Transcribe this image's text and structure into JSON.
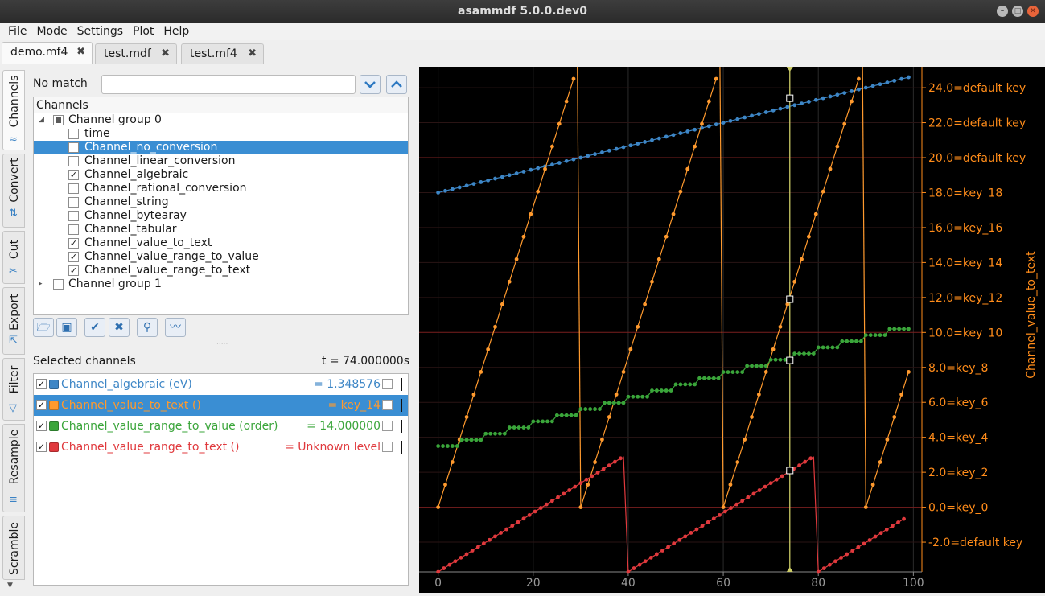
{
  "window": {
    "title": "asammdf 5.0.0.dev0"
  },
  "menu": [
    "File",
    "Mode",
    "Settings",
    "Plot",
    "Help"
  ],
  "file_tabs": [
    {
      "label": "demo.mf4",
      "close": "✖"
    },
    {
      "label": "test.mdf",
      "close": "✖"
    },
    {
      "label": "test.mf4",
      "close": "✖"
    }
  ],
  "side_tabs": [
    {
      "label": "Channels"
    },
    {
      "label": "Convert"
    },
    {
      "label": "Cut"
    },
    {
      "label": "Export"
    },
    {
      "label": "Filter"
    },
    {
      "label": "Resample"
    },
    {
      "label": "Scramble"
    }
  ],
  "search": {
    "status": "No match",
    "value": ""
  },
  "tree": {
    "header": "Channels",
    "group0": {
      "label": "Channel group 0",
      "channels": [
        {
          "name": "time",
          "checked": false
        },
        {
          "name": "Channel_no_conversion",
          "checked": false,
          "selected": true
        },
        {
          "name": "Channel_linear_conversion",
          "checked": false
        },
        {
          "name": "Channel_algebraic",
          "checked": true
        },
        {
          "name": "Channel_rational_conversion",
          "checked": false
        },
        {
          "name": "Channel_string",
          "checked": false
        },
        {
          "name": "Channel_bytearay",
          "checked": false
        },
        {
          "name": "Channel_tabular",
          "checked": false
        },
        {
          "name": "Channel_value_to_text",
          "checked": true
        },
        {
          "name": "Channel_value_range_to_value",
          "checked": true
        },
        {
          "name": "Channel_value_range_to_text",
          "checked": true
        }
      ]
    },
    "group1": {
      "label": "Channel group 1"
    }
  },
  "toolbar_icons": [
    "folder-open-icon",
    "save-icon",
    "check-all-icon",
    "uncheck-all-icon",
    "search-icon",
    "plot-icon"
  ],
  "selected": {
    "label": "Selected channels",
    "time": "t = 74.000000s",
    "channels": [
      {
        "name": "Channel_algebraic (eV)",
        "value": "= 1.348576",
        "color": "#3d86c6"
      },
      {
        "name": "Channel_value_to_text ()",
        "value": "= key_14",
        "color": "#ff9a2e"
      },
      {
        "name": "Channel_value_range_to_value (order)",
        "value": "= 14.000000",
        "color": "#3aa53a"
      },
      {
        "name": "Channel_value_range_to_text ()",
        "value": "= Unknown level",
        "color": "#e0393d"
      }
    ]
  },
  "colors": {
    "selection": "#3a8ed3",
    "axis": "#ff8c1a",
    "cursor": "#cccc66",
    "grid": "#7a1f1f"
  },
  "chart_data": {
    "type": "line",
    "x_ticks": [
      0,
      20,
      40,
      60,
      80,
      100
    ],
    "xlim": [
      -4,
      101.8
    ],
    "ylim": [
      -3.7,
      25.2
    ],
    "y_axis_label": "Channel_value_to_text",
    "y_ticks": [
      {
        "v": -2,
        "label": "-2.0=default key"
      },
      {
        "v": 0,
        "label": "0.0=key_0"
      },
      {
        "v": 2,
        "label": "2.0=key_2"
      },
      {
        "v": 4,
        "label": "4.0=key_4"
      },
      {
        "v": 6,
        "label": "6.0=key_6"
      },
      {
        "v": 8,
        "label": "8.0=key_8"
      },
      {
        "v": 10,
        "label": "10.0=key_10"
      },
      {
        "v": 12,
        "label": "12.0=key_12"
      },
      {
        "v": 14,
        "label": "14.0=key_14"
      },
      {
        "v": 16,
        "label": "16.0=key_16"
      },
      {
        "v": 18,
        "label": "18.0=key_18"
      },
      {
        "v": 20,
        "label": "20.0=default key"
      },
      {
        "v": 22,
        "label": "22.0=default key"
      },
      {
        "v": 24,
        "label": "24.0=default key"
      }
    ],
    "cursor_x": 74,
    "series": [
      {
        "color": "#3d86c6",
        "kind": "linear",
        "points": [
          [
            0,
            18.0
          ],
          [
            99,
            24.6
          ]
        ]
      },
      {
        "color": "#ff9a2e",
        "kind": "sawtooth",
        "period": 30,
        "slope": 0.86,
        "x_start": 0,
        "x_end": 99
      },
      {
        "color": "#3aa53a",
        "kind": "steps",
        "x_start": 0,
        "x_end": 99,
        "y_start": 3.5,
        "y_end": 10.2,
        "step": 5
      },
      {
        "color": "#e0393d",
        "kind": "ramp_reset",
        "segments": [
          [
            [
              0,
              -3.7
            ],
            [
              39,
              2.9
            ]
          ],
          [
            [
              40,
              -3.7
            ],
            [
              79,
              2.9
            ]
          ],
          [
            [
              80,
              -3.7
            ],
            [
              99,
              -0.5
            ]
          ]
        ]
      }
    ]
  }
}
